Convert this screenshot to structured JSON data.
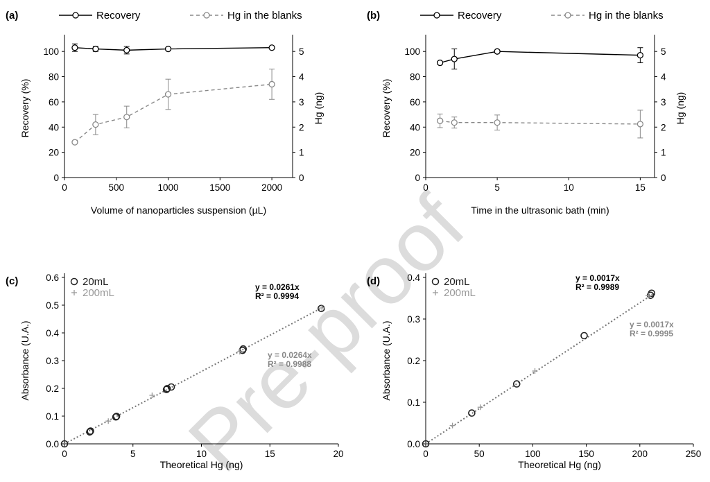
{
  "watermark": "Pre-proof",
  "chart_data": [
    {
      "panel": "(a)",
      "type": "line",
      "xlabel": "Volume of nanoparticles suspension (µL)",
      "ylabel": "Recovery (%)",
      "y2label": "Hg (ng)",
      "xlim": [
        0,
        2200
      ],
      "ylim": [
        0,
        110
      ],
      "y2lim": [
        0,
        5.5
      ],
      "xticks": [
        0,
        500,
        1000,
        1500,
        2000
      ],
      "yticks": [
        0,
        20,
        40,
        60,
        80,
        100
      ],
      "y2ticks": [
        0,
        1,
        2,
        3,
        4,
        5
      ],
      "legend_position": "top",
      "series": [
        {
          "name": "Recovery",
          "axis": "left",
          "style": "solid",
          "color": "#000000",
          "x": [
            100,
            300,
            600,
            1000,
            2000
          ],
          "y": [
            103,
            102,
            101,
            102,
            103
          ],
          "err": [
            3,
            2,
            3,
            0,
            0
          ]
        },
        {
          "name": "Hg in the blanks",
          "axis": "right",
          "style": "dashed",
          "color": "#888888",
          "x": [
            100,
            300,
            600,
            1000,
            2000
          ],
          "y": [
            1.4,
            2.1,
            2.4,
            3.3,
            3.7
          ],
          "err": [
            0,
            0.4,
            0.43,
            0.6,
            0.6
          ]
        }
      ]
    },
    {
      "panel": "(b)",
      "type": "line",
      "xlabel": "Time in the ultrasonic bath (min)",
      "ylabel": "Recovery (%)",
      "y2label": "Hg (ng)",
      "xlim": [
        0,
        16
      ],
      "ylim": [
        0,
        110
      ],
      "y2lim": [
        0,
        5.5
      ],
      "xticks": [
        0,
        5,
        10,
        15
      ],
      "yticks": [
        0,
        20,
        40,
        60,
        80,
        100
      ],
      "y2ticks": [
        0,
        1,
        2,
        3,
        4,
        5
      ],
      "legend_position": "top",
      "series": [
        {
          "name": "Recovery",
          "axis": "left",
          "style": "solid",
          "color": "#000000",
          "x": [
            1,
            2,
            5,
            15
          ],
          "y": [
            91,
            94,
            100,
            97
          ],
          "err": [
            0,
            8,
            0,
            6
          ]
        },
        {
          "name": "Hg in the blanks",
          "axis": "right",
          "style": "dashed",
          "color": "#888888",
          "x": [
            1,
            2,
            5,
            15
          ],
          "y": [
            2.25,
            2.18,
            2.18,
            2.12
          ],
          "err": [
            0.27,
            0.22,
            0.3,
            0.55
          ]
        }
      ]
    },
    {
      "panel": "(c)",
      "type": "scatter",
      "xlabel": "Theoretical Hg (ng)",
      "ylabel": "Absorbance (U.A.)",
      "xlim": [
        0,
        20
      ],
      "ylim": [
        0,
        0.6
      ],
      "xticks": [
        0,
        5,
        10,
        15,
        20
      ],
      "yticks": [
        0,
        0.1,
        0.2,
        0.3,
        0.4,
        0.5,
        0.6
      ],
      "ytick_labels": [
        "0.0",
        "0.1",
        "0.2",
        "0.3",
        "0.4",
        "0.5",
        "0.6"
      ],
      "legend_position": "top-left",
      "series": [
        {
          "name": "20mL",
          "marker": "circle",
          "color": "#222222",
          "x": [
            0,
            1.85,
            1.9,
            3.75,
            3.8,
            7.45,
            7.5,
            7.8,
            13.0,
            13.05,
            18.75
          ],
          "y": [
            0,
            0.043,
            0.046,
            0.097,
            0.099,
            0.196,
            0.199,
            0.205,
            0.337,
            0.342,
            0.488
          ]
        },
        {
          "name": "200mL",
          "marker": "plus",
          "color": "#999999",
          "x": [
            3.2,
            6.4,
            12.8,
            18.8
          ],
          "y": [
            0.082,
            0.175,
            0.332,
            0.49
          ]
        }
      ],
      "fits": [
        {
          "series": "20mL",
          "equation": "y = 0.0261x",
          "r2": "R² = 0.9994",
          "slope": 0.0261,
          "color": "#000000",
          "bold": true
        },
        {
          "series": "200mL",
          "equation": "y = 0.0264x",
          "r2": "R² = 0.9988",
          "slope": 0.0264,
          "color": "#888888",
          "bold": true
        }
      ]
    },
    {
      "panel": "(d)",
      "type": "scatter",
      "xlabel": "Theoretical Hg (ng)",
      "ylabel": "Absorbance (U.A.)",
      "xlim": [
        0,
        250
      ],
      "ylim": [
        0,
        0.4
      ],
      "xticks": [
        0,
        50,
        100,
        150,
        200,
        250
      ],
      "yticks": [
        0,
        0.1,
        0.2,
        0.3,
        0.4
      ],
      "ytick_labels": [
        "0.0",
        "0.1",
        "0.2",
        "0.3",
        "0.4"
      ],
      "legend_position": "top-left",
      "series": [
        {
          "name": "20mL",
          "marker": "circle",
          "color": "#222222",
          "x": [
            0,
            43,
            85,
            148,
            210,
            211
          ],
          "y": [
            0,
            0.074,
            0.144,
            0.26,
            0.357,
            0.362
          ]
        },
        {
          "name": "200mL",
          "marker": "plus",
          "color": "#999999",
          "x": [
            25,
            51,
            102,
            208
          ],
          "y": [
            0.044,
            0.088,
            0.175,
            0.356
          ]
        }
      ],
      "fits": [
        {
          "series": "20mL",
          "equation": "y = 0.0017x",
          "r2": "R² = 0.9989",
          "slope": 0.0017,
          "color": "#000000",
          "bold": true
        },
        {
          "series": "200mL",
          "equation": "y = 0.0017x",
          "r2": "R² = 0.9995",
          "slope": 0.0017,
          "color": "#888888",
          "bold": true
        }
      ]
    }
  ]
}
